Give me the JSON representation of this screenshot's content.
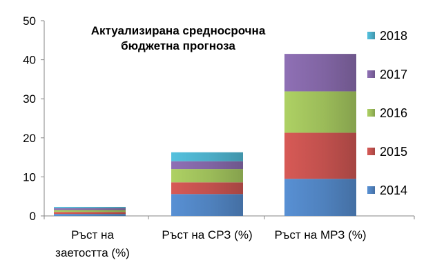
{
  "chart_data": {
    "type": "bar",
    "stacked": true,
    "title_lines": [
      "Актуализирана средносрочна",
      "бюджетна прогноза"
    ],
    "categories": [
      [
        "Ръст на",
        "заетостта (%)"
      ],
      [
        "Ръст на СРЗ (%)"
      ],
      [
        "Ръст на МРЗ (%)"
      ]
    ],
    "series": [
      {
        "name": "2014",
        "color": "#4F81BD",
        "values": [
          0.5,
          5.6,
          9.5
        ]
      },
      {
        "name": "2015",
        "color": "#C0504D",
        "values": [
          0.5,
          3.0,
          11.8
        ]
      },
      {
        "name": "2016",
        "color": "#9BBB59",
        "values": [
          0.5,
          3.4,
          10.6
        ]
      },
      {
        "name": "2017",
        "color": "#8064A2",
        "values": [
          0.5,
          2.0,
          9.6
        ]
      },
      {
        "name": "2018",
        "color": "#4BACC6",
        "values": [
          0.3,
          2.3,
          0
        ]
      }
    ],
    "ylim": [
      0,
      50
    ],
    "yticks": [
      "0",
      "10",
      "20",
      "30",
      "40",
      "50"
    ],
    "legend_position": "right",
    "grid": false
  }
}
